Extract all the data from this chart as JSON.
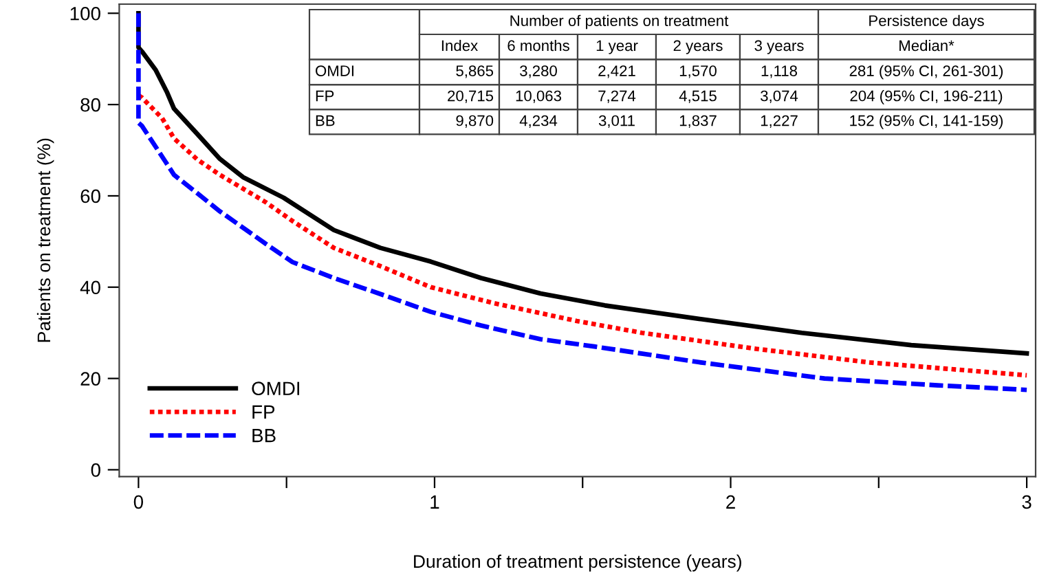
{
  "chart_data": {
    "type": "line",
    "xlabel": "Duration of treatment persistence (years)",
    "ylabel": "Patients on treatment (%)",
    "xlim": [
      -0.065,
      3.03
    ],
    "ylim": [
      -1.5,
      102
    ],
    "xticks": [
      0,
      {
        "value": 0.5,
        "label": null
      },
      1,
      {
        "value": 1.5,
        "label": null
      },
      2,
      {
        "value": 2.5,
        "label": null
      },
      3
    ],
    "yticks": [
      0,
      20,
      40,
      60,
      80,
      100
    ],
    "grid": false,
    "legend": "bottom left",
    "series": [
      {
        "name": "OMDI",
        "color": "#000000",
        "line_style": "solid",
        "x": [
          0,
          0,
          0.012,
          0.058,
          0.097,
          0.12,
          0.198,
          0.275,
          0.353,
          0.49,
          0.66,
          0.817,
          0.987,
          1.157,
          1.358,
          1.575,
          1.9,
          2.24,
          2.61,
          3.0
        ],
        "values": [
          100,
          92.5,
          91.6,
          87.6,
          82.6,
          79.1,
          73.6,
          68.1,
          64.1,
          59.6,
          52.5,
          48.6,
          45.6,
          42,
          38.6,
          36,
          33,
          30,
          27.3,
          25.5
        ]
      },
      {
        "name": "FP",
        "color": "#ff0000",
        "line_style": "dotted",
        "x": [
          0,
          0.012,
          0.08,
          0.12,
          0.198,
          0.275,
          0.43,
          0.52,
          0.66,
          0.817,
          0.987,
          1.2,
          1.48,
          1.7,
          2.085,
          2.47,
          3.0
        ],
        "values": [
          82,
          81.5,
          77,
          72.6,
          68,
          64.6,
          58.6,
          54.5,
          48.6,
          44.6,
          40,
          36.5,
          32.6,
          30,
          26.5,
          23.5,
          20.7
        ]
      },
      {
        "name": "BB",
        "color": "#0000ff",
        "line_style": "dashed",
        "x": [
          0,
          0,
          0.012,
          0.09,
          0.12,
          0.198,
          0.275,
          0.43,
          0.52,
          0.66,
          0.817,
          0.987,
          1.157,
          1.358,
          1.54,
          1.9,
          2.317,
          2.7,
          3.0
        ],
        "values": [
          100,
          76,
          75.3,
          67.6,
          64.6,
          60.6,
          56.6,
          49.5,
          45.5,
          42,
          38.5,
          34.6,
          31.6,
          28.6,
          27,
          23.5,
          20,
          18.5,
          17.5
        ]
      }
    ],
    "annotations": [
      "Number of patients on treatment",
      "Persistence days",
      "Index",
      "6 months",
      "1 year",
      "2 years",
      "3 years",
      "Median*",
      "OMDI",
      "5,865",
      "3,280",
      "2,421",
      "1,570",
      "1,118",
      "281 (95% CI, 261-301)",
      "FP",
      "20,715",
      "10,063",
      "7,274",
      "4,515",
      "3,074",
      "204 (95% CI, 196-211)",
      "BB",
      "9,870",
      "4,234",
      "3,011",
      "1,837",
      "1,227",
      "152 (95% CI, 141-159)"
    ]
  }
}
